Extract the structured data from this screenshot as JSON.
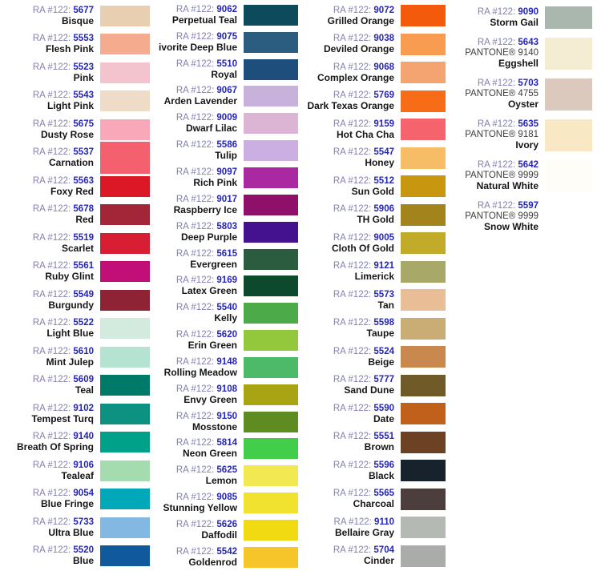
{
  "styles": {
    "background": "#ffffff",
    "prefix_color": "#8181b0",
    "number_color": "#2424bb",
    "name_color": "#151515",
    "pantone_color": "#3c3c3c"
  },
  "labels": {
    "ra_prefix": "RA #122:"
  },
  "columns": [
    {
      "entries": [
        {
          "number": "5677",
          "name": "Bisque",
          "color": "#e9cfb2"
        },
        {
          "number": "5553",
          "name": "Flesh Pink",
          "color": "#f4ab8e"
        },
        {
          "number": "5523",
          "name": "Pink",
          "color": "#f3c4cd"
        },
        {
          "number": "5543",
          "name": "Light Pink",
          "color": "#eedcc8"
        },
        {
          "number": "5675",
          "name": "Dusty Rose",
          "color": "#f8a8b8"
        },
        {
          "number": "5537",
          "name": "Carnation",
          "color": "#f4606e",
          "swatch_h": 40
        },
        {
          "number": "5563",
          "name": "Foxy Red",
          "color": "#dd1826"
        },
        {
          "number": "5678",
          "name": "Red",
          "color": "#a32638"
        },
        {
          "number": "5519",
          "name": "Scarlet",
          "color": "#d81e33"
        },
        {
          "number": "5561",
          "name": "Ruby Glint",
          "color": "#c20f78"
        },
        {
          "number": "5549",
          "name": "Burgundy",
          "color": "#8e2335"
        },
        {
          "number": "5522",
          "name": "Light Blue",
          "color": "#d3eade"
        },
        {
          "number": "5610",
          "name": "Mint Julep",
          "color": "#b5e3d1"
        },
        {
          "number": "5609",
          "name": "Teal",
          "color": "#007a68"
        },
        {
          "number": "9102",
          "name": "Tempest Turq",
          "color": "#0d9180"
        },
        {
          "number": "9140",
          "name": "Breath Of Spring",
          "color": "#00a189"
        },
        {
          "number": "9106",
          "name": "Tealeaf",
          "color": "#a4dcb0"
        },
        {
          "number": "9054",
          "name": "Blue Fringe",
          "color": "#00a8b8"
        },
        {
          "number": "5733",
          "name": "Ultra Blue",
          "color": "#82b8e2"
        },
        {
          "number": "5520",
          "name": "Blue",
          "color": "#10599c"
        }
      ]
    },
    {
      "entries": [
        {
          "number": "9062",
          "name": "Perpetual Teal",
          "color": "#0d4a5c"
        },
        {
          "number": "9075",
          "name": "ivorite Deep Blue",
          "color": "#2a5d80"
        },
        {
          "number": "5510",
          "name": "Royal",
          "color": "#1e4f7c"
        },
        {
          "number": "9067",
          "name": "Arden Lavender",
          "color": "#c8b2dc"
        },
        {
          "number": "9009",
          "name": "Dwarf Lilac",
          "color": "#dcb4d4"
        },
        {
          "number": "5586",
          "name": "Tulip",
          "color": "#ccafe2"
        },
        {
          "number": "9097",
          "name": "Rich Pink",
          "color": "#aa28a2"
        },
        {
          "number": "9017",
          "name": "Raspberry Ice",
          "color": "#8e1068"
        },
        {
          "number": "5803",
          "name": "Deep Purple",
          "color": "#44128e"
        },
        {
          "number": "5615",
          "name": "Evergreen",
          "color": "#2b5c40"
        },
        {
          "number": "9169",
          "name": "Latex Green",
          "color": "#0d4a2d"
        },
        {
          "number": "5540",
          "name": "Kelly",
          "color": "#4caa48"
        },
        {
          "number": "5620",
          "name": "Erin Green",
          "color": "#94c83c"
        },
        {
          "number": "9148",
          "name": "Rolling Meadow",
          "color": "#4cba68"
        },
        {
          "number": "9108",
          "name": "Envy Green",
          "color": "#a8a414"
        },
        {
          "number": "9150",
          "name": "Mosstone",
          "color": "#5e8c20"
        },
        {
          "number": "5814",
          "name": "Neon Green",
          "color": "#42ce4a"
        },
        {
          "number": "5625",
          "name": "Lemon",
          "color": "#f2e852"
        },
        {
          "number": "9085",
          "name": "Stunning Yellow",
          "color": "#f0e22e"
        },
        {
          "number": "5626",
          "name": "Daffodil",
          "color": "#f2da12"
        },
        {
          "number": "5542",
          "name": "Goldenrod",
          "color": "#f6c52a"
        }
      ]
    },
    {
      "entries": [
        {
          "number": "9072",
          "name": "Grilled Orange",
          "color": "#f45a0c"
        },
        {
          "number": "9038",
          "name": "Deviled Orange",
          "color": "#f79c50"
        },
        {
          "number": "9068",
          "name": "Complex Orange",
          "color": "#f4a470"
        },
        {
          "number": "5769",
          "name": "Dark Texas Orange",
          "color": "#f76c16"
        },
        {
          "number": "9159",
          "name": "Hot Cha Cha",
          "color": "#f5646c"
        },
        {
          "number": "5547",
          "name": "Honey",
          "color": "#f7bd66"
        },
        {
          "number": "5512",
          "name": "Sun Gold",
          "color": "#c8960f"
        },
        {
          "number": "5906",
          "name": "TH Gold",
          "color": "#a3831c"
        },
        {
          "number": "9005",
          "name": "Cloth Of Gold",
          "color": "#c3ab2a"
        },
        {
          "number": "9121",
          "name": "Limerick",
          "color": "#a8a868"
        },
        {
          "number": "5573",
          "name": "Tan",
          "color": "#e9bd96"
        },
        {
          "number": "5598",
          "name": "Taupe",
          "color": "#c9ad74"
        },
        {
          "number": "5524",
          "name": "Beige",
          "color": "#c8884e"
        },
        {
          "number": "5777",
          "name": "Sand Dune",
          "color": "#6f5a28"
        },
        {
          "number": "5590",
          "name": "Date",
          "color": "#c0601a"
        },
        {
          "number": "5551",
          "name": "Brown",
          "color": "#6c4124"
        },
        {
          "number": "5596",
          "name": "Black",
          "color": "#17222c"
        },
        {
          "number": "5565",
          "name": "Charcoal",
          "color": "#4c3e3c"
        },
        {
          "number": "9110",
          "name": "Bellaire Gray",
          "color": "#b4b9b4"
        },
        {
          "number": "5704",
          "name": "Cinder",
          "color": "#a9aca8"
        }
      ]
    },
    {
      "entries": [
        {
          "number": "9090",
          "name": "Storm Gail",
          "color": "#a9b7ae",
          "swatch_h": 28
        },
        {
          "number": "5643",
          "pantone": "PANTONE® 9140",
          "name": "Eggshell",
          "color": "#f4edd4"
        },
        {
          "number": "5703",
          "pantone": "PANTONE® 4755",
          "name": "Oyster",
          "color": "#dcc9be"
        },
        {
          "number": "5635",
          "pantone": "PANTONE® 9181",
          "name": "Ivory",
          "color": "#f8e9c4"
        },
        {
          "number": "5642",
          "pantone": "PANTONE® 9999",
          "name": "Natural White",
          "color": "#fefdf7"
        },
        {
          "number": "5597",
          "pantone": "PANTONE® 9999",
          "name": "Snow White",
          "color": "#ffffff"
        }
      ]
    }
  ]
}
